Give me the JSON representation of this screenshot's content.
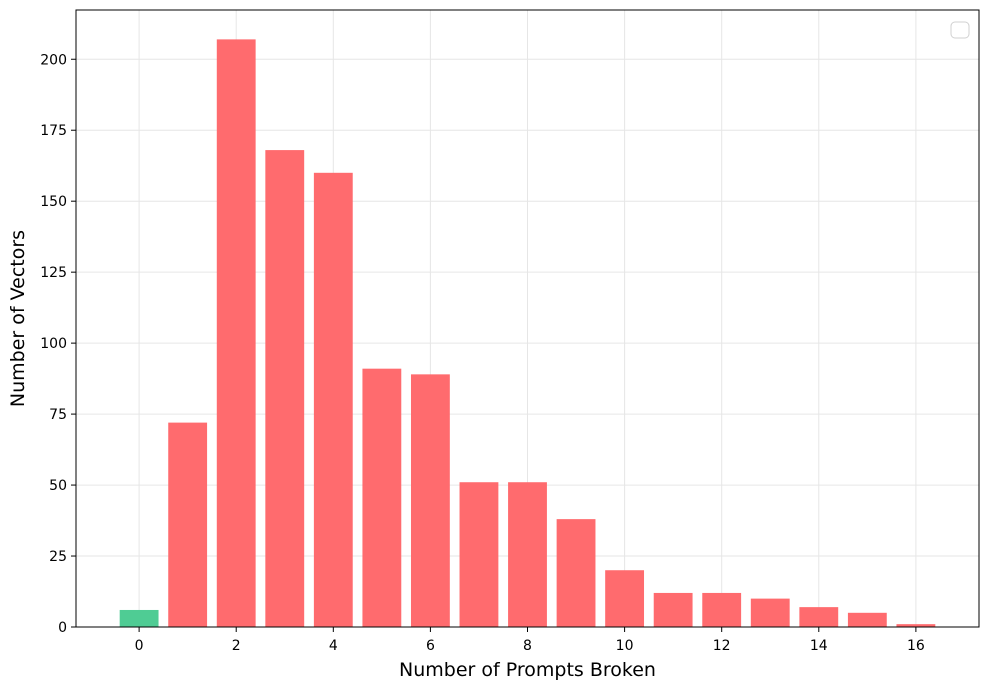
{
  "chart_data": {
    "type": "bar",
    "title": "",
    "xlabel": "Number of Prompts Broken",
    "ylabel": "Number of Vectors",
    "x": [
      0,
      1,
      2,
      3,
      4,
      5,
      6,
      7,
      8,
      9,
      10,
      11,
      12,
      13,
      14,
      15,
      16
    ],
    "values": [
      6,
      72,
      207,
      168,
      160,
      91,
      89,
      51,
      51,
      38,
      20,
      12,
      12,
      10,
      7,
      5,
      1
    ],
    "bar_colors": [
      "#4fcc94",
      "#ff6b6e",
      "#ff6b6e",
      "#ff6b6e",
      "#ff6b6e",
      "#ff6b6e",
      "#ff6b6e",
      "#ff6b6e",
      "#ff6b6e",
      "#ff6b6e",
      "#ff6b6e",
      "#ff6b6e",
      "#ff6b6e",
      "#ff6b6e",
      "#ff6b6e",
      "#ff6b6e",
      "#ff6b6e"
    ],
    "xlim": [
      -1.3,
      17.3
    ],
    "ylim": [
      0,
      217.35
    ],
    "xticks": [
      0,
      2,
      4,
      6,
      8,
      10,
      12,
      14,
      16
    ],
    "yticks": [
      0,
      25,
      50,
      75,
      100,
      125,
      150,
      175,
      200
    ],
    "grid": true,
    "legend": {
      "placement": "top-right",
      "entries": []
    }
  }
}
